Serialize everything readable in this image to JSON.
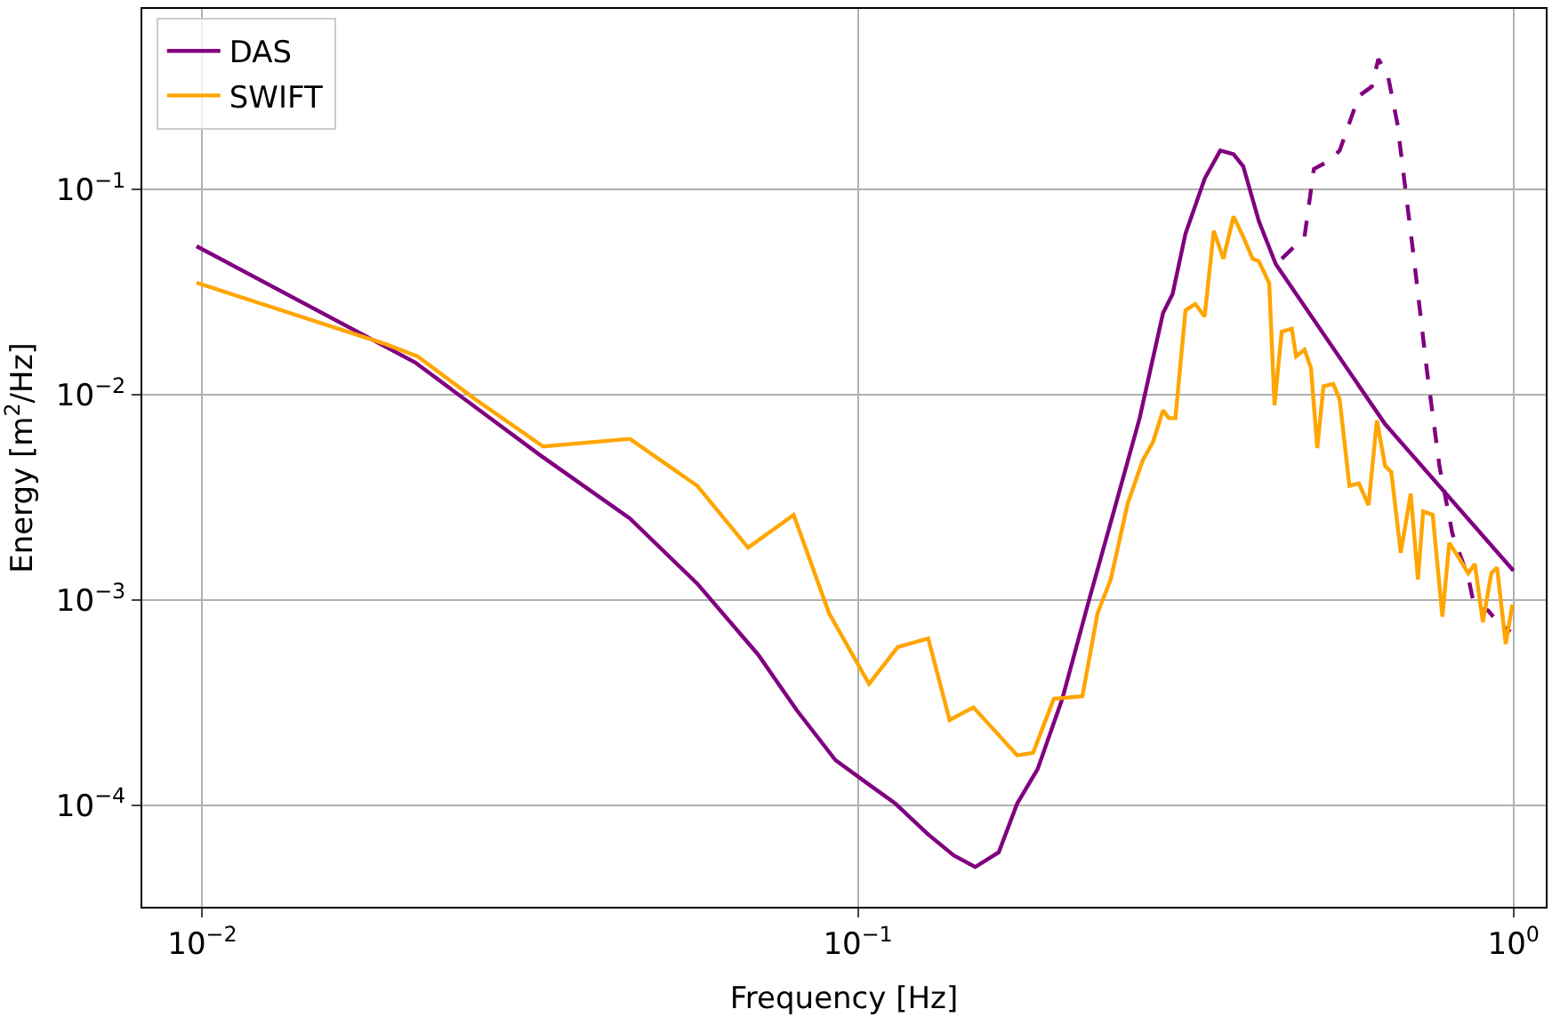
{
  "chart_data": {
    "type": "line",
    "xlabel": "Frequency [Hz]",
    "ylabel": "Energy [m$^{2}$/Hz]",
    "log": "xy",
    "grid": true,
    "legend": "top left",
    "marker": "none",
    "xlim": [
      0.0081,
      1.12
    ],
    "ylim": [
      3.2e-05,
      0.76
    ],
    "xticks": [
      {
        "value": 0.01,
        "label": "10$^{−2}$"
      },
      {
        "value": 0.1,
        "label": "10$^{−1}$"
      },
      {
        "value": 1,
        "label": "10$^{0}$"
      }
    ],
    "yticks": [
      {
        "value": 0.0001,
        "label": "10$^{−4}$"
      },
      {
        "value": 0.001,
        "label": "10$^{−3}$"
      },
      {
        "value": 0.01,
        "label": "10$^{−2}$"
      },
      {
        "value": 0.1,
        "label": "10$^{−1}$"
      }
    ],
    "series": [
      {
        "name": "DAS",
        "color": "#800080",
        "line_style": "solid",
        "x": [
          0.0098,
          0.0211,
          0.0327,
          0.0449,
          0.0569,
          0.0705,
          0.0807,
          0.0924,
          0.104,
          0.114,
          0.128,
          0.14,
          0.151,
          0.164,
          0.175,
          0.188,
          0.205,
          0.225,
          0.246,
          0.269,
          0.292,
          0.302,
          0.316,
          0.338,
          0.357,
          0.374,
          0.387,
          0.409,
          0.434,
          0.637,
          1.0
        ],
        "values": [
          0.053,
          0.0144,
          0.0051,
          0.0025,
          0.0012,
          0.00054,
          0.00029,
          0.000166,
          0.000126,
          0.000102,
          7.2e-05,
          5.7e-05,
          5e-05,
          5.9e-05,
          0.000102,
          0.00015,
          0.00033,
          0.00099,
          0.00275,
          0.0077,
          0.025,
          0.031,
          0.061,
          0.113,
          0.155,
          0.149,
          0.13,
          0.07,
          0.0433,
          0.0072,
          0.00139
        ]
      },
      {
        "color": "#800080",
        "line_style": "dashed",
        "x": [
          0.443,
          0.48,
          0.496,
          0.525,
          0.543,
          0.581,
          0.608,
          0.622,
          0.643,
          0.665,
          0.705,
          0.737,
          0.771,
          0.807,
          0.853,
          0.873,
          0.914,
          0.944,
          0.989
        ],
        "values": [
          0.046,
          0.059,
          0.126,
          0.139,
          0.155,
          0.286,
          0.318,
          0.433,
          0.363,
          0.21,
          0.046,
          0.0135,
          0.0045,
          0.0021,
          0.00129,
          0.00091,
          0.00089,
          0.00079,
          0.0007
        ]
      },
      {
        "name": "SWIFT",
        "color": "#ffa500",
        "line_style": "solid",
        "x": [
          0.0098,
          0.019,
          0.0213,
          0.0261,
          0.0331,
          0.0449,
          0.0569,
          0.068,
          0.0798,
          0.0904,
          0.104,
          0.115,
          0.128,
          0.138,
          0.15,
          0.175,
          0.185,
          0.199,
          0.22,
          0.232,
          0.243,
          0.258,
          0.272,
          0.282,
          0.292,
          0.298,
          0.305,
          0.316,
          0.327,
          0.338,
          0.349,
          0.361,
          0.374,
          0.387,
          0.4,
          0.409,
          0.424,
          0.432,
          0.443,
          0.459,
          0.466,
          0.48,
          0.491,
          0.502,
          0.513,
          0.531,
          0.543,
          0.562,
          0.581,
          0.601,
          0.619,
          0.637,
          0.651,
          0.673,
          0.697,
          0.715,
          0.728,
          0.753,
          0.779,
          0.798,
          0.826,
          0.853,
          0.873,
          0.898,
          0.925,
          0.944,
          0.973,
          0.996
        ],
        "values": [
          0.0352,
          0.0177,
          0.0154,
          0.0095,
          0.0056,
          0.0061,
          0.0036,
          0.0018,
          0.0026,
          0.00086,
          0.00039,
          0.00059,
          0.00065,
          0.00026,
          0.0003,
          0.000175,
          0.00018,
          0.00033,
          0.00034,
          0.00086,
          0.00126,
          0.00296,
          0.0048,
          0.0059,
          0.0084,
          0.0077,
          0.0077,
          0.0258,
          0.0277,
          0.0241,
          0.063,
          0.046,
          0.074,
          0.059,
          0.046,
          0.0447,
          0.035,
          0.0089,
          0.0203,
          0.021,
          0.0154,
          0.0166,
          0.0135,
          0.0055,
          0.011,
          0.0113,
          0.0095,
          0.0036,
          0.0037,
          0.0029,
          0.0075,
          0.0045,
          0.0042,
          0.0017,
          0.0033,
          0.00126,
          0.0027,
          0.0026,
          0.00083,
          0.0019,
          0.0016,
          0.00135,
          0.0015,
          0.00078,
          0.00135,
          0.00144,
          0.00061,
          0.00095
        ]
      }
    ]
  }
}
